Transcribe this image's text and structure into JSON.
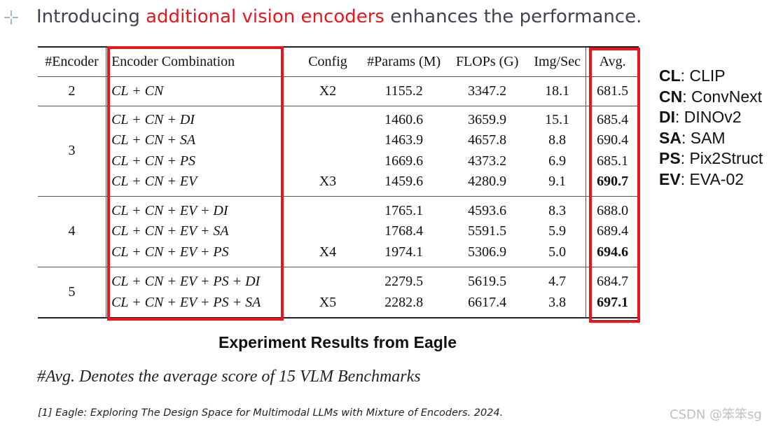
{
  "slide": {
    "title_pre": "Introducing ",
    "title_highlight": "additional vision encoders",
    "title_post": " enhances the performance.",
    "accent_color": "#e8151b"
  },
  "table": {
    "headers": [
      "#Encoder",
      "Encoder Combination",
      "Config",
      "#Params (M)",
      "FLOPs (G)",
      "Img/Sec",
      "Avg."
    ],
    "groups": [
      {
        "encoder": "2",
        "rows": [
          {
            "combo": "CL + CN",
            "config": "X2",
            "params": "1155.2",
            "flops": "3347.2",
            "img": "18.1",
            "avg": "681.5"
          }
        ]
      },
      {
        "encoder": "3",
        "rows": [
          {
            "combo": "CL + CN + DI",
            "config": "",
            "params": "1460.6",
            "flops": "3659.9",
            "img": "15.1",
            "avg": "685.4"
          },
          {
            "combo": "CL + CN + SA",
            "config": "",
            "params": "1463.9",
            "flops": "4657.8",
            "img": "8.8",
            "avg": "690.4"
          },
          {
            "combo": "CL + CN + PS",
            "config": "",
            "params": "1669.6",
            "flops": "4373.2",
            "img": "6.9",
            "avg": "685.1"
          },
          {
            "combo": "CL + CN + EV",
            "config": "X3",
            "params": "1459.6",
            "flops": "4280.9",
            "img": "9.1",
            "avg": "690.7"
          }
        ]
      },
      {
        "encoder": "4",
        "rows": [
          {
            "combo": "CL + CN + EV + DI",
            "config": "",
            "params": "1765.1",
            "flops": "4593.6",
            "img": "8.3",
            "avg": "688.0"
          },
          {
            "combo": "CL + CN + EV + SA",
            "config": "",
            "params": "1768.4",
            "flops": "5591.5",
            "img": "5.9",
            "avg": "689.4"
          },
          {
            "combo": "CL + CN + EV + PS",
            "config": "X4",
            "params": "1974.1",
            "flops": "5306.9",
            "img": "5.0",
            "avg": "694.6"
          }
        ]
      },
      {
        "encoder": "5",
        "rows": [
          {
            "combo": "CL + CN + EV + PS + DI",
            "config": "",
            "params": "2279.5",
            "flops": "5619.5",
            "img": "4.7",
            "avg": "684.7"
          },
          {
            "combo": "CL + CN + EV + PS + SA",
            "config": "X5",
            "params": "2282.8",
            "flops": "6617.4",
            "img": "3.8",
            "avg": "697.1"
          }
        ]
      }
    ]
  },
  "legend": [
    {
      "abbr": "CL",
      "name": "CLIP"
    },
    {
      "abbr": "CN",
      "name": "ConvNext"
    },
    {
      "abbr": "DI",
      "name": "DINOv2"
    },
    {
      "abbr": "SA",
      "name": "SAM"
    },
    {
      "abbr": "PS",
      "name": "Pix2Struct"
    },
    {
      "abbr": "EV",
      "name": "EVA-02"
    }
  ],
  "caption": "Experiment Results from Eagle",
  "note": "#Avg. Denotes the average score of 15 VLM Benchmarks",
  "reference": "[1] Eagle: Exploring The Design Space for Multimodal LLMs with Mixture of Encoders. 2024.",
  "watermark": "CSDN @笨笨sg"
}
